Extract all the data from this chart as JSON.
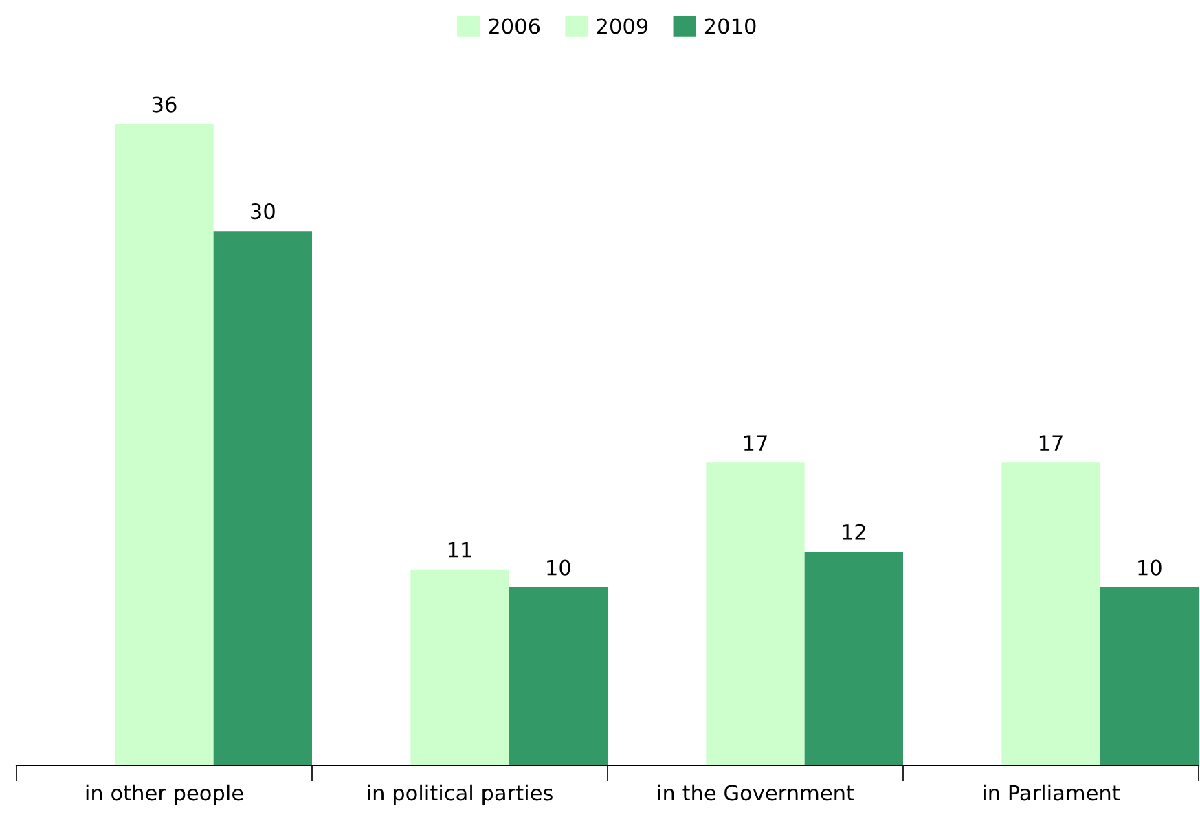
{
  "chart_data": {
    "type": "bar",
    "categories": [
      "in other people",
      "in political parties",
      "in the Government",
      "in Parliament"
    ],
    "series": [
      {
        "name": "2006",
        "color": "#ccffcc",
        "values": [
          null,
          null,
          null,
          null
        ]
      },
      {
        "name": "2009",
        "color": "#ccffcc",
        "values": [
          36,
          11,
          17,
          17
        ]
      },
      {
        "name": "2010",
        "color": "#339966",
        "values": [
          30,
          10,
          12,
          10
        ]
      }
    ],
    "data_labels": true,
    "legend": "top",
    "grid": false
  }
}
